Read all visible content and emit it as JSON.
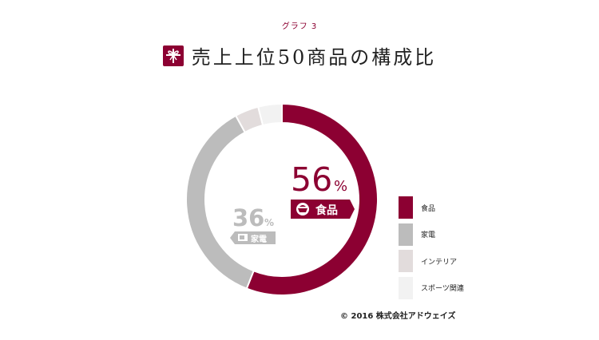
{
  "header": {
    "graph_number": "グラフ 3",
    "title": "売上上位50商品の構成比"
  },
  "chart_data": {
    "type": "pie",
    "categories": [
      "食品",
      "家電",
      "インテリア",
      "スポーツ関連"
    ],
    "values": [
      56,
      36,
      4,
      4
    ],
    "colors": [
      "#8c0032",
      "#bcbcbc",
      "#e2dcdc",
      "#f2f2f2"
    ],
    "labels": [
      {
        "value": "56",
        "unit": "%",
        "name": "食品",
        "icon": "rice-bowl-icon"
      },
      {
        "value": "36",
        "unit": "%",
        "name": "家電",
        "icon": "microwave-icon"
      }
    ]
  },
  "footer": {
    "copyright": "© 2016 株式会社アドウェイズ"
  }
}
